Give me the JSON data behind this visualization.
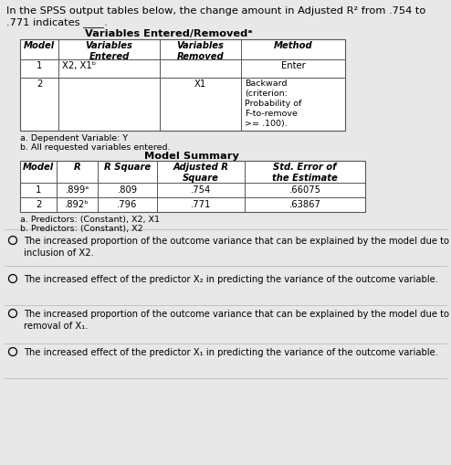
{
  "title_line1": "In the SPSS output tables below, the change amount in Adjusted R² from .754 to",
  "title_line2": ".771 indicates ____.",
  "bg_color": "#e8e8e8",
  "table1_title": "Variables Entered/Removedᵃ",
  "table1_footnote_a": "a. Dependent Variable: Y",
  "table1_footnote_b": "b. All requested variables entered.",
  "table2_title": "Model Summary",
  "table2_footnote_a": "a. Predictors: (Constant), X2, X1",
  "table2_footnote_b": "b. Predictors: (Constant), X2",
  "options": [
    "The increased proportion of the outcome variance that can be explained by the model due to the\ninclusion of X2.",
    "The increased effect of the predictor X₂ in predicting the variance of the outcome variable.",
    "The increased proportion of the outcome variance that can be explained by the model due to the\nremoval of X₁.",
    "The increased effect of the predictor X₁ in predicting the variance of the outcome variable."
  ],
  "sep_line_color": "#bbbbbb",
  "table_border_color": "#555555",
  "font_size_title": 8.2,
  "font_size_body": 7.2,
  "font_size_small": 6.8
}
